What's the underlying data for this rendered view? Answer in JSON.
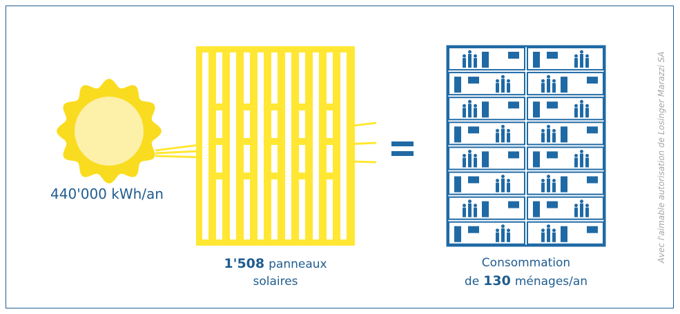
{
  "sun": {
    "label": "440'000 kWh/an"
  },
  "panels": {
    "count": "1'508",
    "label_line1": "panneaux",
    "label_line2": "solaires"
  },
  "households": {
    "line1": "Consommation",
    "prefix": "de",
    "count": "130",
    "suffix": "ménages/an"
  },
  "credit": "Avec l'aimable autorisation de Losinger Marazzi SA"
}
